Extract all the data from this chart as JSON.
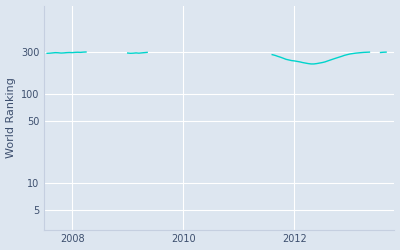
{
  "ylabel": "World Ranking",
  "line_color": "#00d4cc",
  "background_color": "#dde6f0",
  "axes_background": "#dde6f0",
  "grid_color": "#ffffff",
  "yticks": [
    5,
    10,
    50,
    100,
    300
  ],
  "ytick_labels": [
    "5",
    "10",
    "50",
    "100",
    "300"
  ],
  "xlim_start": 2007.5,
  "xlim_end": 2013.8,
  "ylim_bottom": 3,
  "ylim_top": 1000,
  "segments": [
    {
      "x": [
        2007.55,
        2007.6,
        2007.65,
        2007.7,
        2007.75,
        2007.8,
        2007.85,
        2007.9,
        2007.95,
        2008.0,
        2008.05,
        2008.1,
        2008.15,
        2008.2,
        2008.25
      ],
      "y": [
        290,
        291,
        293,
        295,
        294,
        292,
        293,
        295,
        296,
        295,
        297,
        298,
        297,
        299,
        300
      ]
    },
    {
      "x": [
        2009.0,
        2009.05,
        2009.1,
        2009.15,
        2009.2,
        2009.25,
        2009.3,
        2009.35
      ],
      "y": [
        292,
        290,
        291,
        293,
        291,
        293,
        295,
        297
      ]
    },
    {
      "x": [
        2011.6,
        2011.65,
        2011.7,
        2011.75,
        2011.8,
        2011.85,
        2011.9,
        2011.95,
        2012.0,
        2012.05,
        2012.1,
        2012.15,
        2012.2,
        2012.25,
        2012.3,
        2012.35,
        2012.4,
        2012.45,
        2012.5,
        2012.55,
        2012.6,
        2012.65,
        2012.7,
        2012.75,
        2012.8,
        2012.85,
        2012.9,
        2012.95,
        2013.0,
        2013.05,
        2013.1,
        2013.15,
        2013.2,
        2013.25,
        2013.3,
        2013.35
      ],
      "y": [
        280,
        275,
        268,
        262,
        255,
        248,
        244,
        240,
        238,
        235,
        232,
        228,
        225,
        222,
        220,
        220,
        222,
        225,
        228,
        232,
        238,
        244,
        250,
        256,
        262,
        268,
        275,
        280,
        285,
        288,
        291,
        293,
        295,
        297,
        298,
        299
      ]
    },
    {
      "x": [
        2013.55,
        2013.6,
        2013.65
      ],
      "y": [
        296,
        298,
        299
      ]
    }
  ]
}
